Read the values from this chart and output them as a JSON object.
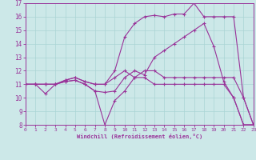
{
  "xlabel": "Windchill (Refroidissement éolien,°C)",
  "bg_color": "#cce8e8",
  "line_color": "#993399",
  "grid_color": "#aad4d4",
  "xmin": 0,
  "xmax": 23,
  "ymin": 8,
  "ymax": 17,
  "series": [
    [
      0,
      11,
      1,
      11,
      2,
      11,
      3,
      11,
      4,
      11.2,
      5,
      11.3,
      6,
      11,
      7,
      10.5,
      8,
      10.4,
      9,
      10.5,
      10,
      11.5,
      11,
      12,
      12,
      11.7,
      13,
      13,
      14,
      13.5,
      15,
      14,
      16,
      14.5,
      17,
      15,
      18,
      15.5,
      19,
      13.8,
      20,
      11.2,
      21,
      10,
      22,
      8,
      23,
      8
    ],
    [
      0,
      11,
      1,
      11,
      2,
      10.3,
      3,
      11,
      4,
      11.2,
      5,
      11.3,
      6,
      11,
      7,
      10.5,
      8,
      8,
      9,
      9.8,
      10,
      10.5,
      11,
      11.5,
      12,
      11.5,
      13,
      11,
      14,
      11,
      15,
      11,
      16,
      11,
      17,
      11,
      18,
      11,
      19,
      11,
      20,
      11,
      21,
      10,
      22,
      8,
      23,
      8
    ],
    [
      0,
      11,
      1,
      11,
      2,
      11,
      3,
      11,
      4,
      11.3,
      5,
      11.5,
      6,
      11.2,
      7,
      11,
      8,
      11,
      9,
      12,
      10,
      14.5,
      11,
      15.5,
      12,
      16,
      13,
      16.1,
      14,
      16,
      15,
      16.2,
      16,
      16.2,
      17,
      17,
      18,
      16,
      19,
      16,
      20,
      16,
      21,
      16,
      22,
      10,
      23,
      8
    ],
    [
      0,
      11,
      1,
      11,
      2,
      11,
      3,
      11,
      4,
      11.3,
      5,
      11.5,
      6,
      11.2,
      7,
      11,
      8,
      11,
      9,
      11.5,
      10,
      12,
      11,
      11.5,
      12,
      12,
      13,
      12,
      14,
      11.5,
      15,
      11.5,
      16,
      11.5,
      17,
      11.5,
      18,
      11.5,
      19,
      11.5,
      20,
      11.5,
      21,
      11.5,
      22,
      10,
      23,
      8
    ]
  ]
}
